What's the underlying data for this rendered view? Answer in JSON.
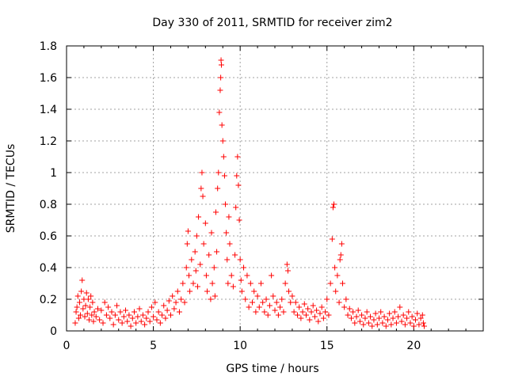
{
  "chart_data": {
    "type": "scatter",
    "title": "Day 330 of 2011, SRMTID for receiver zim2",
    "xlabel": "GPS time / hours",
    "ylabel": "SRMTID / TECUs",
    "xlim": [
      0,
      24
    ],
    "ylim": [
      0,
      1.8
    ],
    "x_ticks": [
      0,
      5,
      10,
      15,
      20
    ],
    "x_tick_labels": [
      "0",
      "5",
      "10",
      "15",
      "20"
    ],
    "y_ticks": [
      0,
      0.2,
      0.4,
      0.6,
      0.8,
      1.0,
      1.2,
      1.4,
      1.6,
      1.8
    ],
    "y_tick_labels": [
      "0",
      "0.2",
      "0.4",
      "0.6",
      "0.8",
      "1",
      "1.2",
      "1.4",
      "1.6",
      "1.8"
    ],
    "grid": true,
    "marker": "plus",
    "color": "#ff0000",
    "series": [
      {
        "name": "SRMTID",
        "points": [
          [
            0.5,
            0.05
          ],
          [
            0.55,
            0.12
          ],
          [
            0.6,
            0.15
          ],
          [
            0.65,
            0.22
          ],
          [
            0.7,
            0.08
          ],
          [
            0.75,
            0.18
          ],
          [
            0.8,
            0.1
          ],
          [
            0.85,
            0.25
          ],
          [
            0.9,
            0.32
          ],
          [
            0.95,
            0.14
          ],
          [
            1.0,
            0.2
          ],
          [
            1.05,
            0.09
          ],
          [
            1.1,
            0.16
          ],
          [
            1.15,
            0.24
          ],
          [
            1.2,
            0.11
          ],
          [
            1.25,
            0.2
          ],
          [
            1.3,
            0.07
          ],
          [
            1.35,
            0.15
          ],
          [
            1.4,
            0.22
          ],
          [
            1.45,
            0.1
          ],
          [
            1.5,
            0.18
          ],
          [
            1.55,
            0.06
          ],
          [
            1.6,
            0.12
          ],
          [
            1.7,
            0.09
          ],
          [
            1.8,
            0.14
          ],
          [
            1.9,
            0.07
          ],
          [
            2.0,
            0.13
          ],
          [
            2.1,
            0.05
          ],
          [
            2.2,
            0.18
          ],
          [
            2.3,
            0.1
          ],
          [
            2.4,
            0.15
          ],
          [
            2.5,
            0.08
          ],
          [
            2.6,
            0.12
          ],
          [
            2.7,
            0.04
          ],
          [
            2.8,
            0.1
          ],
          [
            2.9,
            0.16
          ],
          [
            3.0,
            0.07
          ],
          [
            3.1,
            0.12
          ],
          [
            3.2,
            0.05
          ],
          [
            3.3,
            0.09
          ],
          [
            3.4,
            0.13
          ],
          [
            3.5,
            0.06
          ],
          [
            3.6,
            0.1
          ],
          [
            3.7,
            0.03
          ],
          [
            3.8,
            0.08
          ],
          [
            3.9,
            0.12
          ],
          [
            4.0,
            0.05
          ],
          [
            4.1,
            0.09
          ],
          [
            4.2,
            0.14
          ],
          [
            4.3,
            0.06
          ],
          [
            4.4,
            0.1
          ],
          [
            4.5,
            0.04
          ],
          [
            4.6,
            0.08
          ],
          [
            4.7,
            0.12
          ],
          [
            4.8,
            0.06
          ],
          [
            4.9,
            0.15
          ],
          [
            5.0,
            0.09
          ],
          [
            5.1,
            0.18
          ],
          [
            5.2,
            0.07
          ],
          [
            5.3,
            0.12
          ],
          [
            5.4,
            0.05
          ],
          [
            5.5,
            0.1
          ],
          [
            5.6,
            0.16
          ],
          [
            5.7,
            0.08
          ],
          [
            5.8,
            0.13
          ],
          [
            5.9,
            0.19
          ],
          [
            6.0,
            0.1
          ],
          [
            6.1,
            0.22
          ],
          [
            6.2,
            0.14
          ],
          [
            6.3,
            0.18
          ],
          [
            6.4,
            0.25
          ],
          [
            6.5,
            0.12
          ],
          [
            6.6,
            0.2
          ],
          [
            6.7,
            0.3
          ],
          [
            6.8,
            0.18
          ],
          [
            6.9,
            0.4
          ],
          [
            6.95,
            0.55
          ],
          [
            7.0,
            0.63
          ],
          [
            7.05,
            0.35
          ],
          [
            7.1,
            0.25
          ],
          [
            7.2,
            0.45
          ],
          [
            7.3,
            0.3
          ],
          [
            7.4,
            0.5
          ],
          [
            7.45,
            0.38
          ],
          [
            7.5,
            0.6
          ],
          [
            7.55,
            0.28
          ],
          [
            7.6,
            0.72
          ],
          [
            7.7,
            0.42
          ],
          [
            7.75,
            0.9
          ],
          [
            7.8,
            1.0
          ],
          [
            7.85,
            0.85
          ],
          [
            7.9,
            0.55
          ],
          [
            8.0,
            0.68
          ],
          [
            8.05,
            0.35
          ],
          [
            8.1,
            0.25
          ],
          [
            8.2,
            0.48
          ],
          [
            8.3,
            0.2
          ],
          [
            8.35,
            0.62
          ],
          [
            8.4,
            0.3
          ],
          [
            8.5,
            0.4
          ],
          [
            8.55,
            0.22
          ],
          [
            8.6,
            0.75
          ],
          [
            8.65,
            0.5
          ],
          [
            8.7,
            0.9
          ],
          [
            8.75,
            1.0
          ],
          [
            8.8,
            1.38
          ],
          [
            8.85,
            1.52
          ],
          [
            8.88,
            1.6
          ],
          [
            8.9,
            1.71
          ],
          [
            8.92,
            1.68
          ],
          [
            8.95,
            1.3
          ],
          [
            9.0,
            1.2
          ],
          [
            9.05,
            1.1
          ],
          [
            9.1,
            0.98
          ],
          [
            9.15,
            0.8
          ],
          [
            9.2,
            0.62
          ],
          [
            9.25,
            0.45
          ],
          [
            9.3,
            0.3
          ],
          [
            9.35,
            0.72
          ],
          [
            9.4,
            0.55
          ],
          [
            9.5,
            0.35
          ],
          [
            9.6,
            0.28
          ],
          [
            9.7,
            0.48
          ],
          [
            9.75,
            0.78
          ],
          [
            9.8,
            0.98
          ],
          [
            9.85,
            1.1
          ],
          [
            9.9,
            0.92
          ],
          [
            9.95,
            0.7
          ],
          [
            10.0,
            0.45
          ],
          [
            10.05,
            0.32
          ],
          [
            10.1,
            0.25
          ],
          [
            10.2,
            0.4
          ],
          [
            10.3,
            0.2
          ],
          [
            10.4,
            0.35
          ],
          [
            10.5,
            0.15
          ],
          [
            10.6,
            0.3
          ],
          [
            10.7,
            0.18
          ],
          [
            10.8,
            0.25
          ],
          [
            10.9,
            0.12
          ],
          [
            11.0,
            0.22
          ],
          [
            11.1,
            0.15
          ],
          [
            11.2,
            0.3
          ],
          [
            11.3,
            0.18
          ],
          [
            11.4,
            0.12
          ],
          [
            11.5,
            0.2
          ],
          [
            11.6,
            0.1
          ],
          [
            11.7,
            0.16
          ],
          [
            11.8,
            0.35
          ],
          [
            11.9,
            0.22
          ],
          [
            12.0,
            0.13
          ],
          [
            12.1,
            0.18
          ],
          [
            12.2,
            0.1
          ],
          [
            12.3,
            0.15
          ],
          [
            12.4,
            0.2
          ],
          [
            12.5,
            0.12
          ],
          [
            12.6,
            0.3
          ],
          [
            12.7,
            0.42
          ],
          [
            12.75,
            0.38
          ],
          [
            12.8,
            0.25
          ],
          [
            12.9,
            0.18
          ],
          [
            13.0,
            0.22
          ],
          [
            13.1,
            0.12
          ],
          [
            13.2,
            0.18
          ],
          [
            13.3,
            0.1
          ],
          [
            13.4,
            0.15
          ],
          [
            13.5,
            0.08
          ],
          [
            13.6,
            0.12
          ],
          [
            13.7,
            0.17
          ],
          [
            13.8,
            0.1
          ],
          [
            13.9,
            0.14
          ],
          [
            14.0,
            0.07
          ],
          [
            14.1,
            0.12
          ],
          [
            14.2,
            0.16
          ],
          [
            14.3,
            0.09
          ],
          [
            14.4,
            0.13
          ],
          [
            14.5,
            0.06
          ],
          [
            14.6,
            0.11
          ],
          [
            14.7,
            0.15
          ],
          [
            14.8,
            0.08
          ],
          [
            14.9,
            0.12
          ],
          [
            15.0,
            0.2
          ],
          [
            15.1,
            0.1
          ],
          [
            15.2,
            0.3
          ],
          [
            15.3,
            0.58
          ],
          [
            15.35,
            0.78
          ],
          [
            15.4,
            0.8
          ],
          [
            15.45,
            0.4
          ],
          [
            15.5,
            0.25
          ],
          [
            15.6,
            0.35
          ],
          [
            15.7,
            0.18
          ],
          [
            15.75,
            0.45
          ],
          [
            15.8,
            0.48
          ],
          [
            15.85,
            0.55
          ],
          [
            15.9,
            0.3
          ],
          [
            16.0,
            0.15
          ],
          [
            16.1,
            0.2
          ],
          [
            16.2,
            0.1
          ],
          [
            16.3,
            0.14
          ],
          [
            16.4,
            0.08
          ],
          [
            16.5,
            0.12
          ],
          [
            16.6,
            0.05
          ],
          [
            16.7,
            0.09
          ],
          [
            16.8,
            0.13
          ],
          [
            16.9,
            0.06
          ],
          [
            17.0,
            0.1
          ],
          [
            17.1,
            0.04
          ],
          [
            17.2,
            0.08
          ],
          [
            17.3,
            0.12
          ],
          [
            17.4,
            0.05
          ],
          [
            17.5,
            0.09
          ],
          [
            17.6,
            0.03
          ],
          [
            17.7,
            0.07
          ],
          [
            17.8,
            0.11
          ],
          [
            17.9,
            0.04
          ],
          [
            18.0,
            0.08
          ],
          [
            18.1,
            0.12
          ],
          [
            18.2,
            0.05
          ],
          [
            18.3,
            0.09
          ],
          [
            18.4,
            0.03
          ],
          [
            18.5,
            0.07
          ],
          [
            18.6,
            0.11
          ],
          [
            18.7,
            0.04
          ],
          [
            18.8,
            0.08
          ],
          [
            18.9,
            0.12
          ],
          [
            19.0,
            0.05
          ],
          [
            19.1,
            0.09
          ],
          [
            19.2,
            0.15
          ],
          [
            19.3,
            0.06
          ],
          [
            19.4,
            0.1
          ],
          [
            19.5,
            0.04
          ],
          [
            19.6,
            0.08
          ],
          [
            19.7,
            0.12
          ],
          [
            19.8,
            0.05
          ],
          [
            19.9,
            0.09
          ],
          [
            20.0,
            0.03
          ],
          [
            20.1,
            0.07
          ],
          [
            20.2,
            0.11
          ],
          [
            20.3,
            0.04
          ],
          [
            20.4,
            0.08
          ],
          [
            20.5,
            0.1
          ],
          [
            20.55,
            0.05
          ],
          [
            20.6,
            0.03
          ]
        ]
      }
    ]
  }
}
